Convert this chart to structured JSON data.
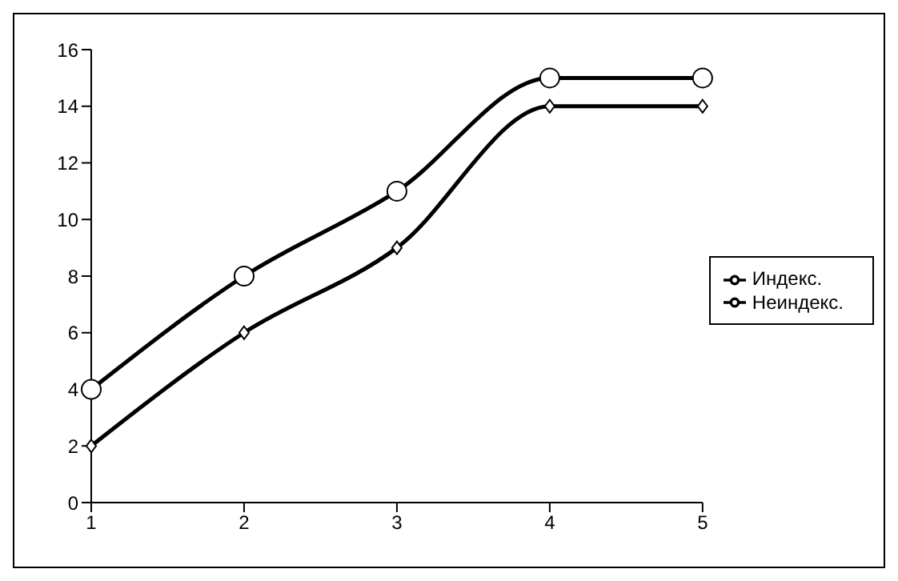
{
  "chart_data": {
    "type": "line",
    "categories": [
      "1",
      "2",
      "3",
      "4",
      "5"
    ],
    "series": [
      {
        "name": "Индекс.",
        "color": "#000000",
        "marker": "diamond",
        "values": [
          2,
          6,
          9,
          14,
          14
        ]
      },
      {
        "name": "Неиндекс.",
        "color": "#000000",
        "marker": "circle",
        "values": [
          4,
          8,
          11,
          15,
          15
        ]
      }
    ],
    "ylim": [
      0,
      16
    ],
    "yticks": [
      0,
      2,
      4,
      6,
      8,
      10,
      12,
      14,
      16
    ],
    "grid": false,
    "legend": "right",
    "line_style": "solid"
  }
}
